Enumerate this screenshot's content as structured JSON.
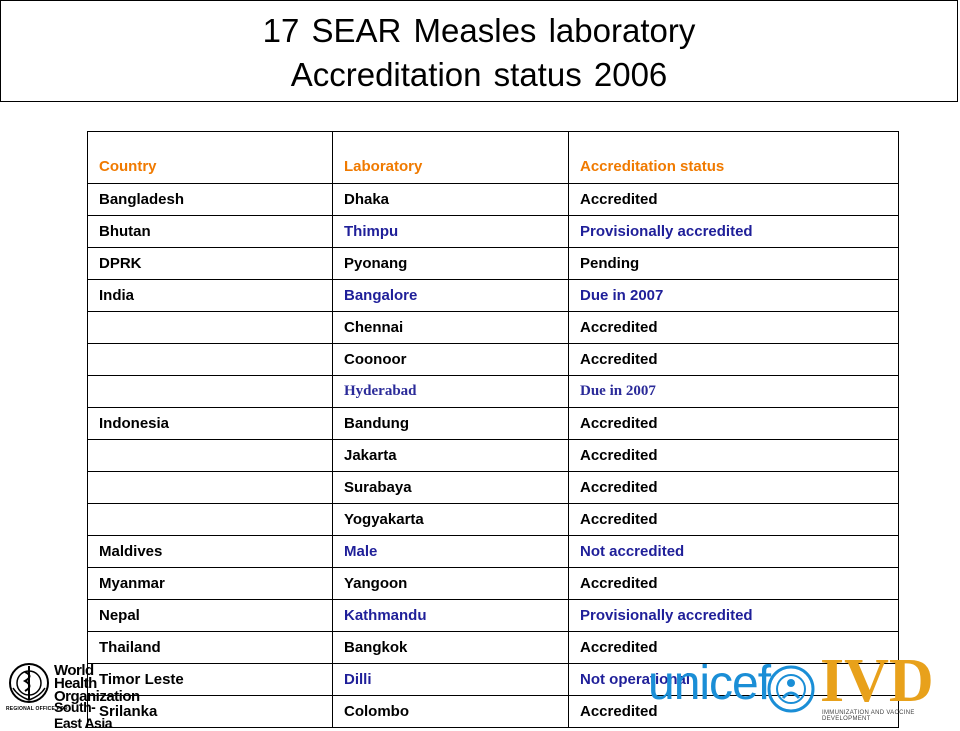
{
  "title": {
    "line1": "17 SEAR Measles laboratory",
    "line2": "Accreditation status  2006"
  },
  "table": {
    "headers": [
      "Country",
      "Laboratory",
      "Accreditation status"
    ],
    "rows": [
      {
        "country": "Bangladesh",
        "lab": "Dhaka",
        "status": "Accredited"
      },
      {
        "country": "Bhutan",
        "lab": "Thimpu",
        "status": "Provisionally accredited"
      },
      {
        "country": "DPRK",
        "lab": "Pyonang",
        "status": "Pending"
      },
      {
        "country": "India",
        "lab": "Bangalore",
        "status": "Due in 2007"
      },
      {
        "country": "",
        "lab": "Chennai",
        "status": "Accredited"
      },
      {
        "country": "",
        "lab": "Coonoor",
        "status": "Accredited"
      },
      {
        "country": "",
        "lab": "Hyderabad",
        "status": "Due in 2007"
      },
      {
        "country": "Indonesia",
        "lab": "Bandung",
        "status": "Accredited"
      },
      {
        "country": "",
        "lab": "Jakarta",
        "status": "Accredited"
      },
      {
        "country": "",
        "lab": "Surabaya",
        "status": "Accredited"
      },
      {
        "country": "",
        "lab": "Yogyakarta",
        "status": "Accredited"
      },
      {
        "country": "Maldives",
        "lab": "Male",
        "status": "Not accredited"
      },
      {
        "country": "Myanmar",
        "lab": "Yangoon",
        "status": "Accredited"
      },
      {
        "country": "Nepal",
        "lab": "Kathmandu",
        "status": "Provisionally accredited"
      },
      {
        "country": "Thailand",
        "lab": "Bangkok",
        "status": "Accredited"
      },
      {
        "country": "Timor Leste",
        "lab": "Dilli",
        "status": "Not operational"
      },
      {
        "country": "Srilanka",
        "lab": "Colombo",
        "status": "Accredited"
      }
    ]
  },
  "logos": {
    "who_line1": "World Health",
    "who_line2": "Organization",
    "who_regional": "REGIONAL OFFICE FOR",
    "who_region": "South-East Asia",
    "unicef": "unicef",
    "ivd": "IVD",
    "ivd_sub": "IMMUNIZATION AND VACCINE DEVELOPMENT"
  },
  "colors": {
    "header_text": "#f07a00",
    "blue_text": "#1f1f99",
    "unicef_blue": "#1a8ed6",
    "ivd_gold": "#e8a11b"
  }
}
